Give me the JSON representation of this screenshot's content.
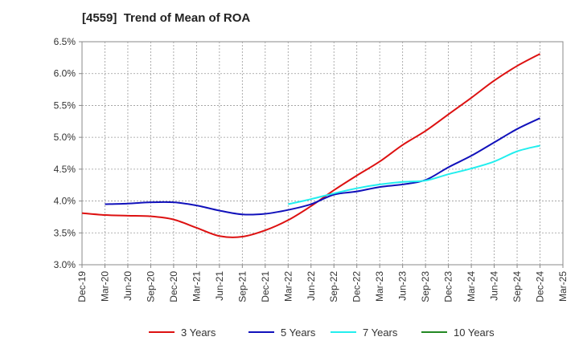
{
  "chart_data": {
    "type": "line",
    "title": "[4559]  Trend of Mean of ROA",
    "xlabel": "",
    "ylabel": "",
    "x": [
      "Dec-19",
      "Mar-20",
      "Jun-20",
      "Sep-20",
      "Dec-20",
      "Mar-21",
      "Jun-21",
      "Sep-21",
      "Dec-21",
      "Mar-22",
      "Jun-22",
      "Sep-22",
      "Dec-22",
      "Mar-23",
      "Jun-23",
      "Sep-23",
      "Dec-23",
      "Mar-24",
      "Jun-24",
      "Sep-24",
      "Dec-24"
    ],
    "x_ticks": [
      "Dec-19",
      "Mar-20",
      "Jun-20",
      "Sep-20",
      "Dec-20",
      "Mar-21",
      "Jun-21",
      "Sep-21",
      "Dec-21",
      "Mar-22",
      "Jun-22",
      "Sep-22",
      "Dec-22",
      "Mar-23",
      "Jun-23",
      "Sep-23",
      "Dec-23",
      "Mar-24",
      "Jun-24",
      "Sep-24",
      "Dec-24",
      "Mar-25"
    ],
    "y_ticks": [
      "3.0%",
      "3.5%",
      "4.0%",
      "4.5%",
      "5.0%",
      "5.5%",
      "6.0%",
      "6.5%"
    ],
    "ylim": [
      3.0,
      6.5
    ],
    "y_unit": "%",
    "grid": true,
    "legend_position": "bottom",
    "series": [
      {
        "name": "3 Years",
        "color": "#dd1111",
        "values": [
          3.81,
          3.78,
          3.77,
          3.76,
          3.71,
          3.58,
          3.45,
          3.44,
          3.54,
          3.7,
          3.92,
          4.17,
          4.4,
          4.62,
          4.88,
          5.1,
          5.36,
          5.62,
          5.89,
          6.12,
          6.31
        ]
      },
      {
        "name": "5 Years",
        "color": "#1111bb",
        "values": [
          null,
          3.95,
          3.96,
          3.98,
          3.98,
          3.93,
          3.85,
          3.79,
          3.8,
          3.86,
          3.95,
          4.1,
          4.15,
          4.22,
          4.26,
          4.33,
          4.53,
          4.71,
          4.92,
          5.13,
          5.3
        ]
      },
      {
        "name": "7 Years",
        "color": "#22eeee",
        "values": [
          null,
          null,
          null,
          null,
          null,
          null,
          null,
          null,
          null,
          3.95,
          4.03,
          4.12,
          4.2,
          4.26,
          4.3,
          4.32,
          4.42,
          4.51,
          4.62,
          4.78,
          4.87
        ]
      },
      {
        "name": "10 Years",
        "color": "#228822",
        "values": [
          null,
          null,
          null,
          null,
          null,
          null,
          null,
          null,
          null,
          null,
          null,
          null,
          null,
          null,
          null,
          null,
          null,
          null,
          null,
          null,
          null
        ]
      }
    ]
  }
}
